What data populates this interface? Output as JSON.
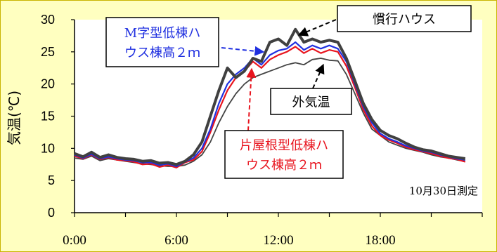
{
  "chart_data": {
    "type": "line",
    "ylabel": "気温(℃)",
    "ylim": [
      0,
      30
    ],
    "yticks": [
      0,
      5,
      10,
      15,
      20,
      25,
      30
    ],
    "xlim": [
      0,
      24
    ],
    "xticks": [
      "0:00",
      "6:00",
      "12:00",
      "18:00"
    ],
    "note": "10月30日測定",
    "series": [
      {
        "name": "外気温",
        "color": "#444444",
        "x": [
          0,
          0.5,
          1,
          1.5,
          2,
          2.5,
          3,
          3.5,
          4,
          4.5,
          5,
          5.5,
          6,
          6.5,
          7,
          7.5,
          8,
          8.5,
          9,
          9.5,
          10,
          10.5,
          11,
          11.5,
          12,
          12.5,
          13,
          13.5,
          14,
          14.5,
          15,
          15.5,
          16,
          16.5,
          17,
          17.5,
          18,
          18.5,
          19,
          19.5,
          20,
          20.5,
          21,
          21.5,
          22,
          22.5,
          23
        ],
        "y": [
          8.5,
          8.3,
          8.8,
          8.1,
          8.4,
          8.2,
          8.0,
          7.8,
          7.6,
          7.5,
          7.3,
          7.2,
          7.2,
          7.4,
          8.0,
          9.0,
          11.0,
          14.0,
          16.5,
          18.5,
          20.0,
          21.0,
          21.5,
          22.0,
          22.5,
          23.0,
          23.3,
          23.0,
          23.8,
          24.0,
          23.7,
          23.6,
          21.5,
          18.5,
          15.5,
          13.0,
          12.0,
          11.0,
          10.5,
          10.0,
          9.7,
          9.4,
          9.0,
          8.7,
          8.5,
          8.2,
          8.0
        ]
      },
      {
        "name": "片屋根型低棟ハウス棟高２ｍ",
        "color": "#e8141e",
        "x": [
          0,
          0.5,
          1,
          1.5,
          2,
          2.5,
          3,
          3.5,
          4,
          4.5,
          5,
          5.5,
          6,
          6.5,
          7,
          7.5,
          8,
          8.5,
          9,
          9.5,
          10,
          10.5,
          11,
          11.5,
          12,
          12.5,
          13,
          13.5,
          14,
          14.5,
          15,
          15.5,
          16,
          16.5,
          17,
          17.5,
          18,
          18.5,
          19,
          19.5,
          20,
          20.5,
          21,
          21.5,
          22,
          22.5,
          23
        ],
        "y": [
          8.8,
          8.4,
          9.0,
          8.3,
          8.6,
          8.2,
          8.1,
          7.9,
          7.5,
          7.6,
          7.1,
          7.4,
          7.0,
          7.8,
          8.2,
          9.5,
          12.5,
          16.0,
          19.0,
          21.0,
          22.0,
          23.5,
          22.5,
          23.8,
          24.5,
          25.0,
          25.8,
          24.8,
          25.5,
          24.8,
          25.3,
          25.0,
          22.8,
          19.5,
          16.0,
          13.5,
          12.0,
          11.3,
          10.8,
          10.2,
          9.8,
          9.5,
          9.2,
          8.8,
          8.5,
          8.3,
          7.9
        ]
      },
      {
        "name": "M字型低棟ハウス棟高２ｍ",
        "color": "#2030e0",
        "x": [
          0,
          0.5,
          1,
          1.5,
          2,
          2.5,
          3,
          3.5,
          4,
          4.5,
          5,
          5.5,
          6,
          6.5,
          7,
          7.5,
          8,
          8.5,
          9,
          9.5,
          10,
          10.5,
          11,
          11.5,
          12,
          12.5,
          13,
          13.5,
          14,
          14.5,
          15,
          15.5,
          16,
          16.5,
          17,
          17.5,
          18,
          18.5,
          19,
          19.5,
          20,
          20.5,
          21,
          21.5,
          22,
          22.5,
          23
        ],
        "y": [
          9.0,
          8.5,
          9.1,
          8.4,
          8.7,
          8.4,
          8.2,
          8.1,
          7.8,
          7.8,
          7.4,
          7.6,
          7.2,
          7.9,
          8.5,
          10.0,
          13.0,
          17.0,
          20.0,
          21.5,
          22.5,
          24.0,
          23.0,
          24.5,
          25.2,
          25.5,
          26.5,
          25.3,
          26.0,
          25.5,
          26.0,
          25.5,
          23.5,
          20.0,
          16.5,
          14.0,
          12.3,
          11.5,
          11.0,
          10.4,
          10.0,
          9.6,
          9.4,
          9.0,
          8.7,
          8.4,
          8.2
        ]
      },
      {
        "name": "慣行ハウス",
        "color": "#404040",
        "x": [
          0,
          0.5,
          1,
          1.5,
          2,
          2.5,
          3,
          3.5,
          4,
          4.5,
          5,
          5.5,
          6,
          6.5,
          7,
          7.5,
          8,
          8.5,
          9,
          9.5,
          10,
          10.5,
          11,
          11.5,
          12,
          12.5,
          13,
          13.5,
          14,
          14.5,
          15,
          15.5,
          16,
          16.5,
          17,
          17.5,
          18,
          18.5,
          19,
          19.5,
          20,
          20.5,
          21,
          21.5,
          22,
          22.5,
          23
        ],
        "y": [
          9.2,
          8.7,
          9.4,
          8.6,
          9.0,
          8.6,
          8.4,
          8.3,
          8.0,
          8.1,
          7.7,
          7.8,
          7.5,
          8.0,
          9.0,
          11.0,
          15.0,
          19.0,
          22.5,
          21.0,
          22.0,
          24.0,
          23.5,
          26.5,
          27.0,
          26.0,
          28.5,
          26.5,
          27.0,
          26.5,
          26.8,
          26.5,
          24.0,
          20.5,
          17.0,
          14.5,
          12.8,
          12.0,
          11.5,
          10.8,
          10.2,
          9.8,
          9.6,
          9.2,
          8.8,
          8.6,
          8.4
        ]
      }
    ],
    "annotations": [
      {
        "lines": [
          "M字型低棟ハ",
          "ウス棟高２ｍ"
        ],
        "color": "#2030e0",
        "series": "M字型低棟ハウス棟高２ｍ"
      },
      {
        "lines": [
          "慣行ハウス"
        ],
        "color": "#000000",
        "series": "慣行ハウス"
      },
      {
        "lines": [
          "外気温"
        ],
        "color": "#000000",
        "series": "外気温"
      },
      {
        "lines": [
          "片屋根型低棟ハ",
          "ウス棟高２ｍ"
        ],
        "color": "#e8141e",
        "series": "片屋根型低棟ハウス棟高２ｍ"
      }
    ]
  }
}
